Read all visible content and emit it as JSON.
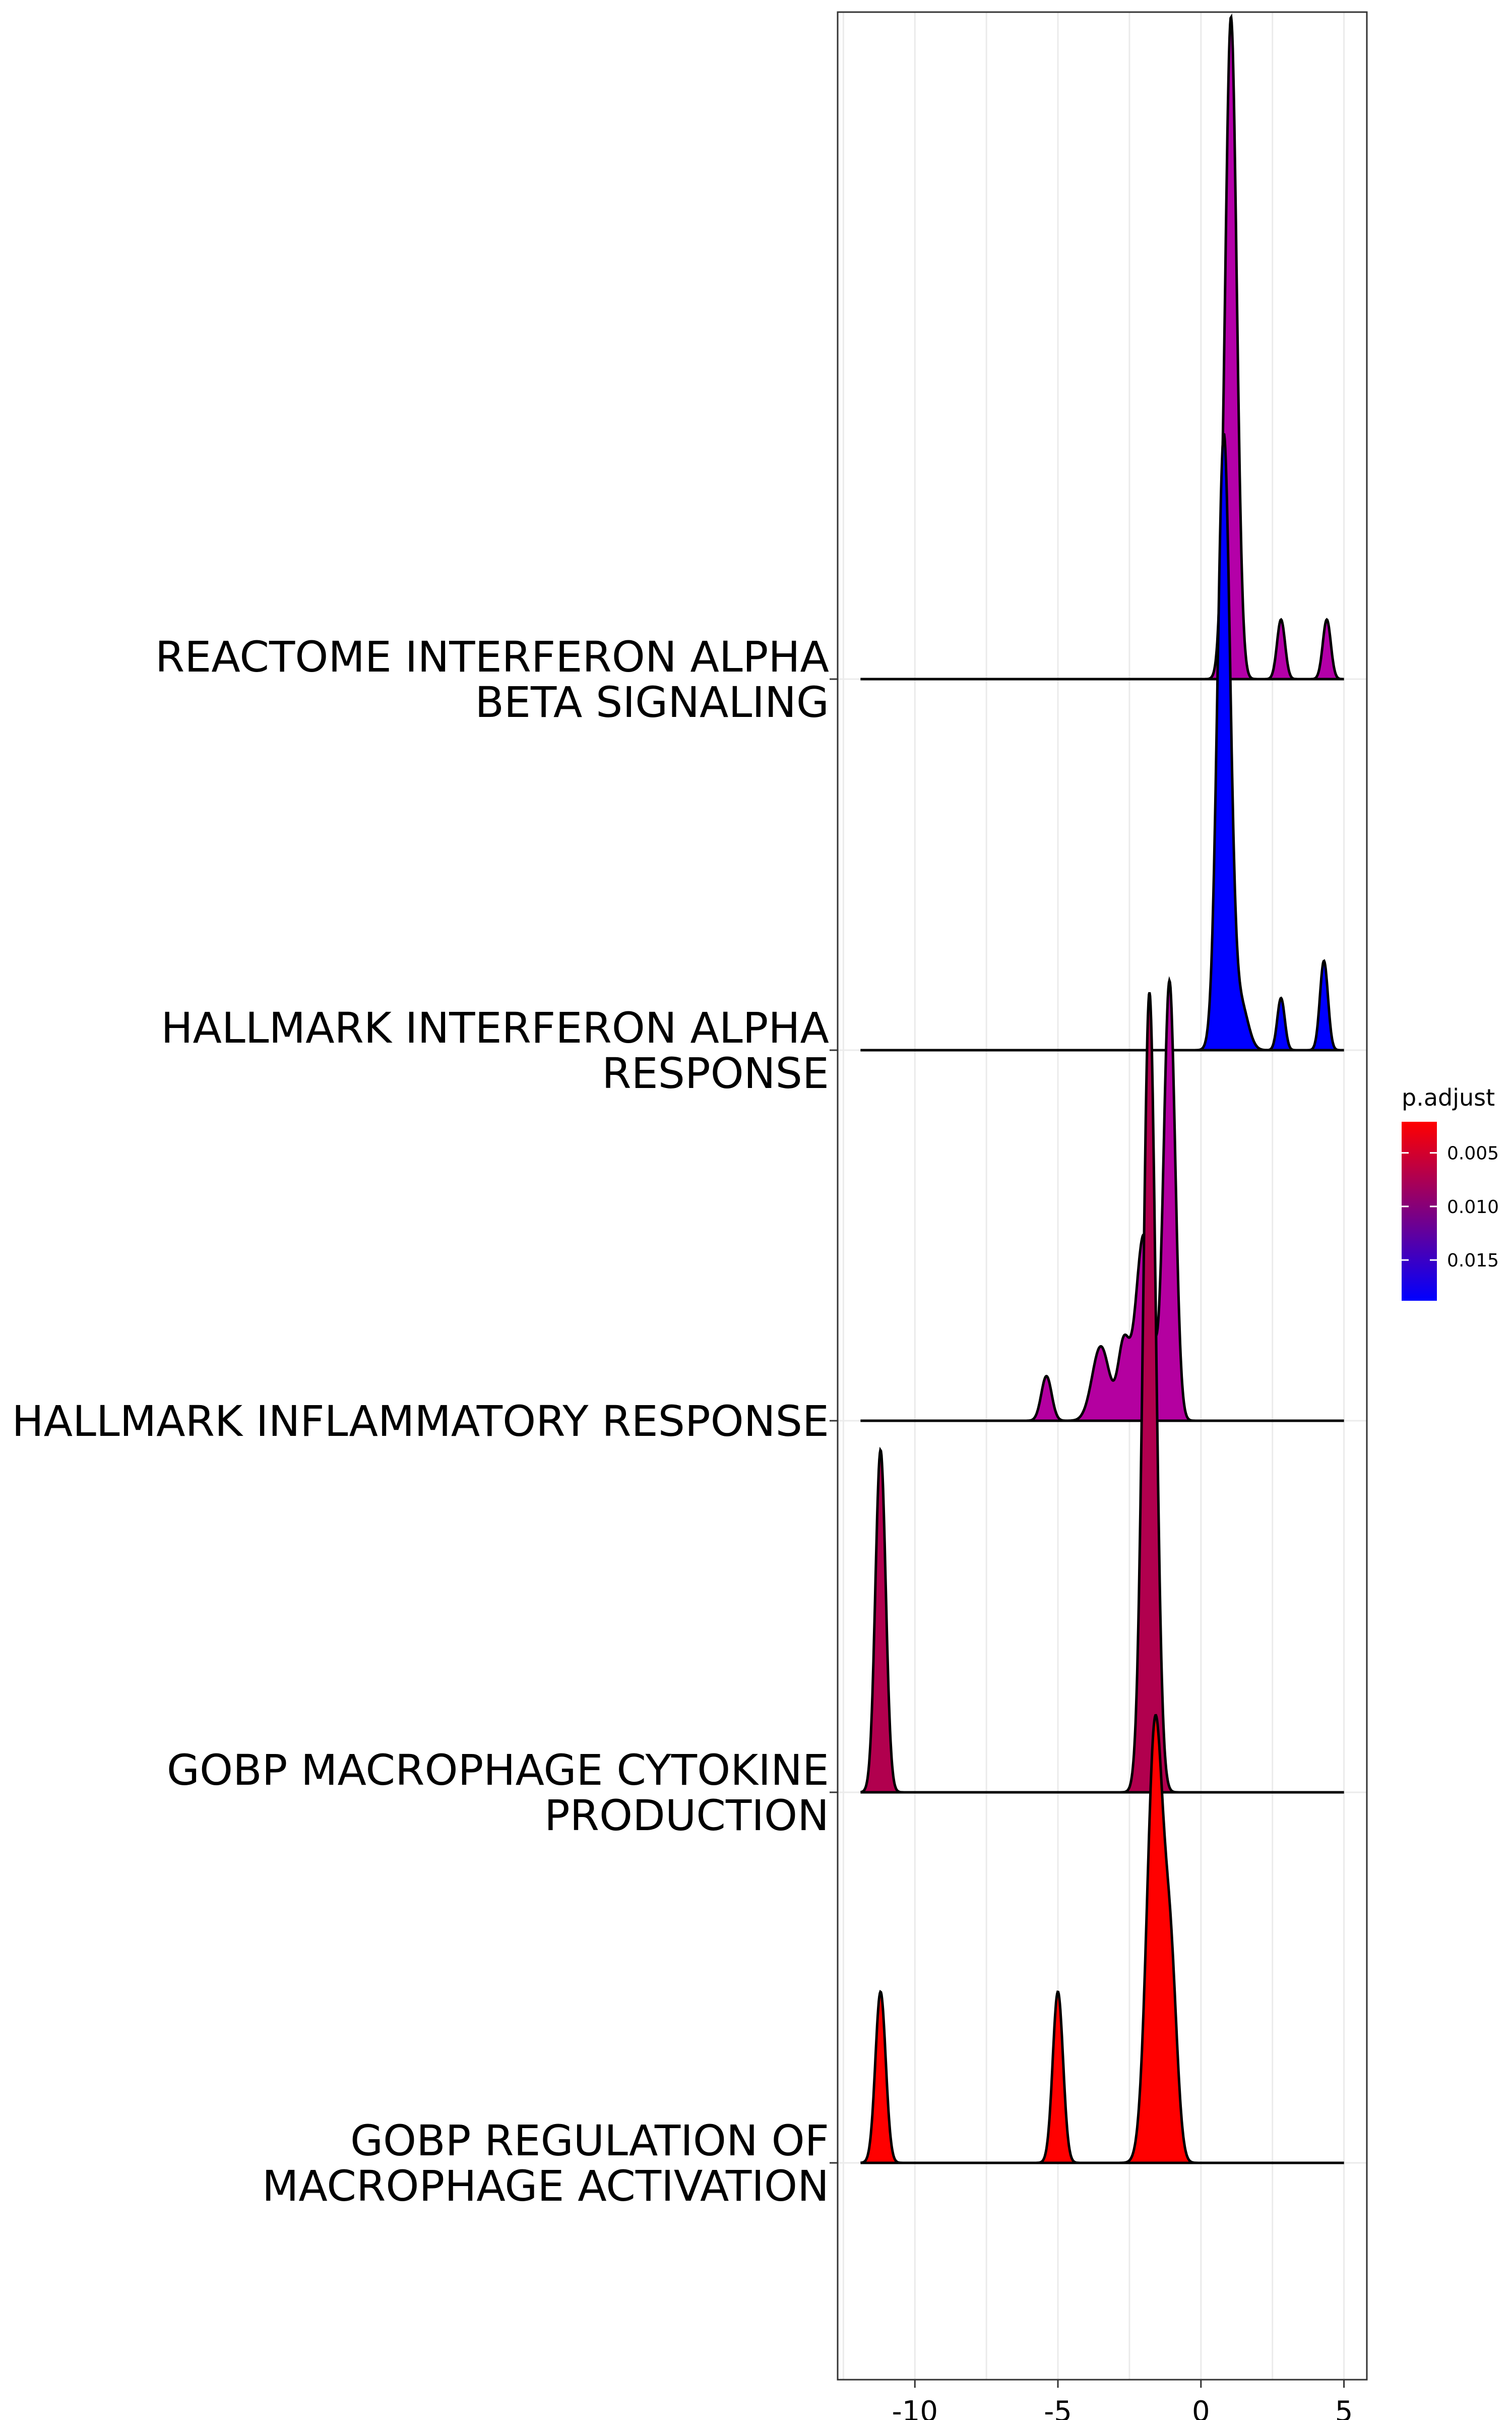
{
  "chart_data": {
    "type": "ridgeline",
    "x_ticks": [
      -10,
      -5,
      0,
      5
    ],
    "x_range": [
      -12.7,
      5.8
    ],
    "x_extent": [
      -11.9,
      5.0
    ],
    "grid": true,
    "legend": {
      "title": "p.adjust",
      "position": "right",
      "ticks": [
        {
          "value": 0.005,
          "label": "0.005"
        },
        {
          "value": 0.01,
          "label": "0.010"
        },
        {
          "value": 0.015,
          "label": "0.015"
        }
      ],
      "range": [
        0.0021,
        0.0188
      ],
      "low_color": "#FF0000",
      "high_color": "#0000FF"
    },
    "series": [
      {
        "label": "GOBP REGULATION OF\nMACROPHAGE ACTIVATION",
        "p_adjust": 0.0021,
        "color": "#FF0000",
        "peaks": [
          {
            "x": -11.2,
            "h": 0.46,
            "w": 0.18
          },
          {
            "x": -5.0,
            "h": 0.46,
            "w": 0.18
          },
          {
            "x": -1.6,
            "h": 1.18,
            "w": 0.28
          },
          {
            "x": -1.05,
            "h": 0.48,
            "w": 0.22
          }
        ]
      },
      {
        "label": "GOBP MACROPHAGE CYTOKINE\nPRODUCTION",
        "p_adjust": 0.0115,
        "color": "#B1004E",
        "peaks": [
          {
            "x": -11.2,
            "h": 0.92,
            "w": 0.18
          },
          {
            "x": -1.8,
            "h": 2.15,
            "w": 0.22
          }
        ]
      },
      {
        "label": "HALLMARK INFLAMMATORY RESPONSE",
        "p_adjust": 0.0128,
        "color": "#B400A0",
        "peaks": [
          {
            "x": -5.4,
            "h": 0.12,
            "w": 0.18
          },
          {
            "x": -3.5,
            "h": 0.2,
            "w": 0.3
          },
          {
            "x": -2.7,
            "h": 0.2,
            "w": 0.2
          },
          {
            "x": -2.0,
            "h": 0.5,
            "w": 0.28
          },
          {
            "x": -1.1,
            "h": 1.18,
            "w": 0.2
          }
        ]
      },
      {
        "label": "HALLMARK INTERFERON ALPHA\nRESPONSE",
        "p_adjust": 0.0188,
        "color": "#0000FF",
        "peaks": [
          {
            "x": 0.8,
            "h": 1.65,
            "w": 0.22
          },
          {
            "x": 1.4,
            "h": 0.12,
            "w": 0.25
          },
          {
            "x": 2.8,
            "h": 0.14,
            "w": 0.13
          },
          {
            "x": 4.3,
            "h": 0.24,
            "w": 0.14
          }
        ]
      },
      {
        "label": "REACTOME INTERFERON ALPHA\nBETA SIGNALING",
        "p_adjust": 0.0125,
        "color": "#B400A8",
        "peaks": [
          {
            "x": 1.05,
            "h": 1.78,
            "w": 0.2
          },
          {
            "x": 2.8,
            "h": 0.16,
            "w": 0.14
          },
          {
            "x": 4.4,
            "h": 0.16,
            "w": 0.14
          }
        ]
      }
    ]
  }
}
